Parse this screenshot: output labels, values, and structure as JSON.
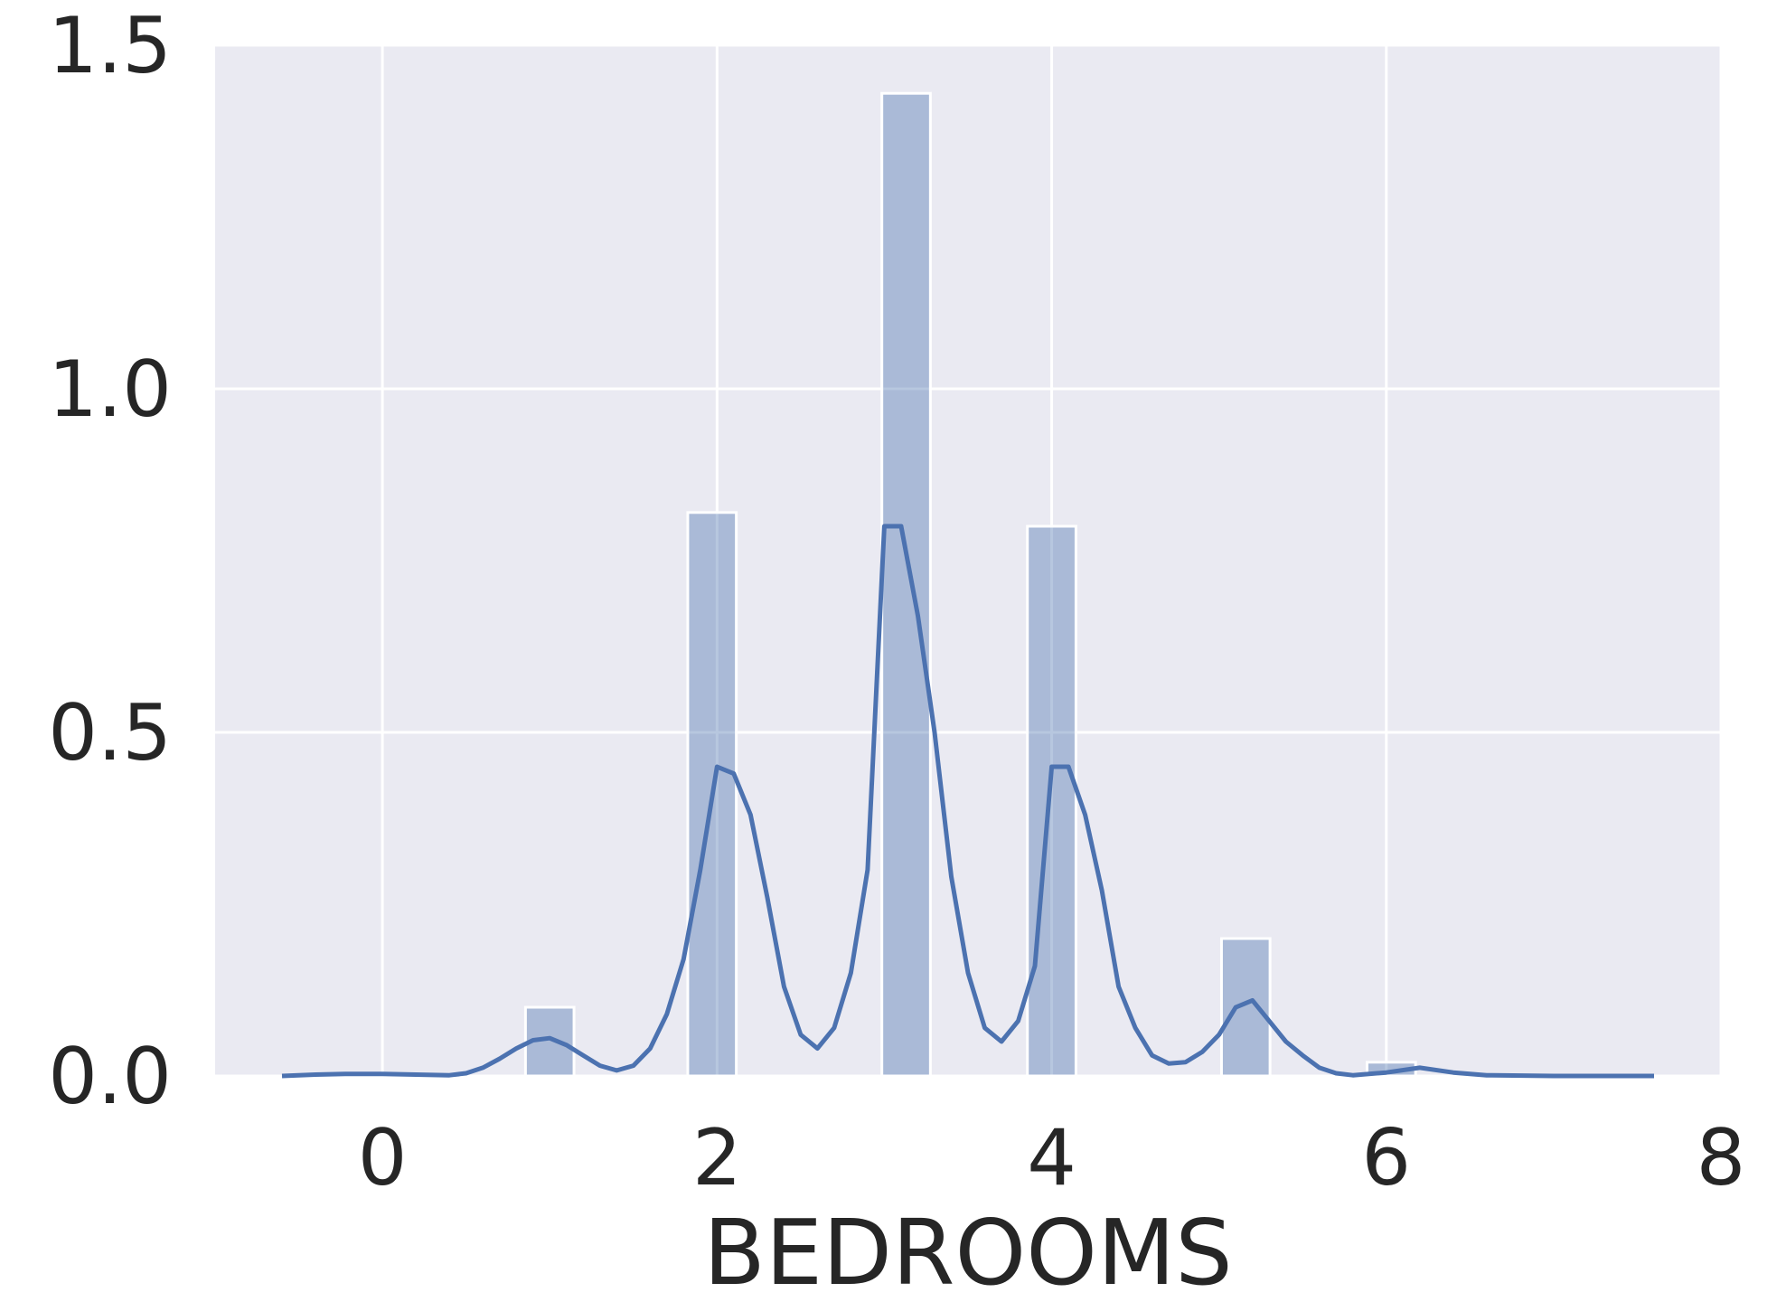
{
  "chart_data": {
    "type": "bar",
    "xlabel": "BEDROOMS",
    "ylabel": "",
    "xlim": [
      -1,
      8
    ],
    "ylim": [
      0,
      1.5
    ],
    "x_ticks": [
      0,
      2,
      4,
      6,
      8
    ],
    "x_tick_labels": [
      "0",
      "2",
      "4",
      "6",
      "8"
    ],
    "y_ticks": [
      0.0,
      0.5,
      1.0,
      1.5
    ],
    "y_tick_labels": [
      "0.0",
      "0.5",
      "1.0",
      "1.5"
    ],
    "grid": true,
    "bin_width": 0.29,
    "bars": [
      {
        "x": 1.0,
        "height": 0.1
      },
      {
        "x": 1.97,
        "height": 0.82
      },
      {
        "x": 3.13,
        "height": 1.43
      },
      {
        "x": 4.0,
        "height": 0.8
      },
      {
        "x": 5.16,
        "height": 0.2
      },
      {
        "x": 6.03,
        "height": 0.02
      }
    ],
    "kde": {
      "x": [
        -0.6,
        -0.4,
        -0.2,
        0.0,
        0.2,
        0.4,
        0.5,
        0.6,
        0.7,
        0.8,
        0.9,
        1.0,
        1.1,
        1.2,
        1.3,
        1.4,
        1.5,
        1.6,
        1.7,
        1.8,
        1.9,
        2.0,
        2.1,
        2.2,
        2.3,
        2.4,
        2.5,
        2.6,
        2.7,
        2.8,
        2.9,
        3.0,
        3.1,
        3.2,
        3.3,
        3.4,
        3.5,
        3.6,
        3.7,
        3.8,
        3.9,
        4.0,
        4.1,
        4.2,
        4.3,
        4.4,
        4.5,
        4.6,
        4.7,
        4.8,
        4.9,
        5.0,
        5.1,
        5.2,
        5.3,
        5.4,
        5.5,
        5.6,
        5.7,
        5.8,
        6.0,
        6.2,
        6.4,
        6.6,
        7.0,
        7.6
      ],
      "y": [
        0.0,
        0.002,
        0.003,
        0.003,
        0.002,
        0.001,
        0.004,
        0.012,
        0.025,
        0.04,
        0.052,
        0.055,
        0.045,
        0.03,
        0.015,
        0.008,
        0.015,
        0.04,
        0.09,
        0.17,
        0.3,
        0.45,
        0.44,
        0.38,
        0.26,
        0.13,
        0.06,
        0.04,
        0.07,
        0.15,
        0.3,
        0.8,
        0.8,
        0.67,
        0.5,
        0.29,
        0.15,
        0.07,
        0.05,
        0.08,
        0.16,
        0.45,
        0.45,
        0.38,
        0.27,
        0.13,
        0.07,
        0.03,
        0.018,
        0.02,
        0.035,
        0.06,
        0.1,
        0.11,
        0.08,
        0.05,
        0.03,
        0.012,
        0.004,
        0.001,
        0.005,
        0.012,
        0.005,
        0.001,
        0.0,
        0.0
      ]
    },
    "colors": {
      "background": "#eaeaf2",
      "grid": "#ffffff",
      "bar_fill": "#4c72b0",
      "bar_opacity": 0.4,
      "line": "#4c72b0",
      "text": "#262626"
    }
  }
}
